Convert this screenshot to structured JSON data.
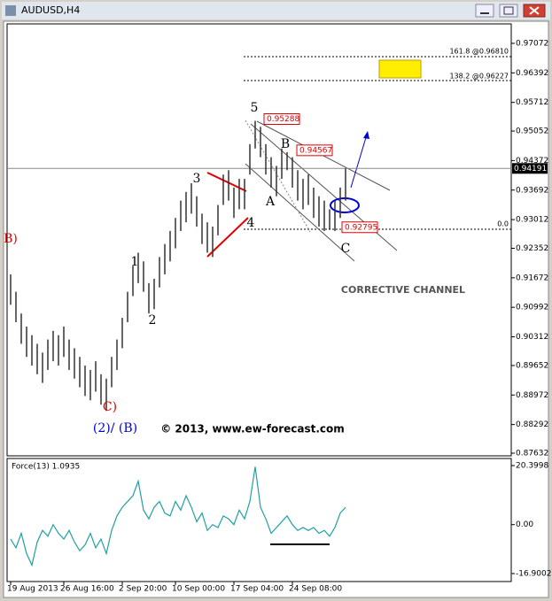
{
  "window_title": "AUDUSD,H4",
  "chart_data": {
    "type": "ohlc",
    "categories": [
      "19 Aug 2013",
      null,
      null,
      null,
      null,
      null,
      null,
      null,
      null,
      null,
      "26 Aug 16:00",
      null,
      null,
      null,
      null,
      null,
      null,
      null,
      null,
      null,
      null,
      "2 Sep 20:00",
      null,
      null,
      null,
      null,
      null,
      null,
      null,
      null,
      null,
      "10 Sep 00:00",
      null,
      null,
      null,
      null,
      null,
      null,
      null,
      null,
      null,
      null,
      "17 Sep 04:00",
      null,
      null,
      null,
      null,
      null,
      null,
      null,
      null,
      null,
      null,
      "24 Sep 08:00",
      null,
      null,
      null,
      null,
      null,
      null,
      null,
      null,
      null,
      null
    ],
    "high": [
      0.9175,
      0.9135,
      0.9085,
      0.9055,
      0.9035,
      0.9015,
      0.8995,
      0.9025,
      0.9045,
      0.9035,
      0.9055,
      0.9025,
      0.9005,
      0.8985,
      0.8965,
      0.8955,
      0.8975,
      0.8945,
      0.8935,
      0.8985,
      0.9025,
      0.9075,
      0.9135,
      0.9195,
      0.9225,
      0.9205,
      0.9155,
      0.9165,
      0.9215,
      0.9245,
      0.9275,
      0.9305,
      0.9345,
      0.9365,
      0.9385,
      0.9355,
      0.9315,
      0.9295,
      0.9285,
      0.9335,
      0.9405,
      0.9415,
      0.9375,
      0.9395,
      0.9395,
      0.9475,
      0.95288,
      0.9515,
      0.9475,
      0.9445,
      0.9425,
      0.9465,
      0.94567,
      0.9445,
      0.9415,
      0.9395,
      0.9405,
      0.9375,
      0.9355,
      0.9345,
      0.9325,
      0.9345,
      0.9375,
      0.94191
    ],
    "low": [
      0.9105,
      0.9065,
      0.9015,
      0.8985,
      0.8965,
      0.8945,
      0.8925,
      0.8955,
      0.8975,
      0.8965,
      0.8985,
      0.8955,
      0.8935,
      0.8915,
      0.8895,
      0.8885,
      0.8905,
      0.8875,
      0.88605,
      0.8915,
      0.8955,
      0.9005,
      0.9065,
      0.9125,
      0.9155,
      0.9135,
      0.9085,
      0.9095,
      0.9145,
      0.9175,
      0.9205,
      0.9235,
      0.9275,
      0.9295,
      0.9315,
      0.9285,
      0.9245,
      0.9225,
      0.9215,
      0.9265,
      0.9335,
      0.9345,
      0.9305,
      0.9325,
      0.9325,
      0.9405,
      0.9465,
      0.9445,
      0.9405,
      0.9375,
      0.9355,
      0.9395,
      0.9415,
      0.9375,
      0.9345,
      0.9325,
      0.9335,
      0.9305,
      0.9285,
      0.9275,
      0.92795,
      0.9275,
      0.9305,
      0.9345
    ],
    "color": "#333333",
    "ylim": [
      0.87571,
      0.9752
    ],
    "yticks": [
      0.97072,
      0.96392,
      0.95712,
      0.95052,
      0.94372,
      0.93692,
      0.93012,
      0.92352,
      0.91672,
      0.90992,
      0.90312,
      0.89652,
      0.88972,
      0.88292,
      0.87632
    ],
    "last_price": 0.94191,
    "price_marks": [
      0.95288,
      0.94567,
      0.92795
    ],
    "fib_labels": [
      "161.8 @0.96810",
      "138.2 @0.96227",
      "0.0"
    ],
    "wave_labels": [
      "5",
      "B",
      "3",
      "A",
      "4",
      "1",
      "2",
      "C",
      "C)",
      "(2)/ (B)",
      "B)"
    ],
    "annotations": [
      "CORRECTIVE CHANNEL",
      "© 2013, www.ew-forecast.com"
    ],
    "indicator": {
      "name": "Force(13) 1.0935",
      "color": "#20a0a0",
      "values": [
        -5,
        -8,
        -3,
        -10,
        -14,
        -6,
        -2,
        -4,
        0,
        -3,
        -5,
        -2,
        -6,
        -9,
        -7,
        -3,
        -8,
        -5,
        -10,
        -2,
        3,
        6,
        8,
        10,
        15,
        5,
        2,
        6,
        8,
        4,
        3,
        8,
        5,
        10,
        6,
        1,
        4,
        -2,
        0,
        -1,
        3,
        2,
        0,
        5,
        2,
        8,
        20,
        6,
        2,
        -3,
        -1,
        1,
        3,
        0,
        -2,
        -1,
        -2,
        -1,
        -3,
        -2,
        -4,
        -1,
        4,
        6
      ],
      "ylim": [
        -19.35,
        22.54
      ],
      "yticks": [
        20.3998,
        {
          "value": 0,
          "label": "0.00"
        },
        -16.9002
      ]
    }
  }
}
